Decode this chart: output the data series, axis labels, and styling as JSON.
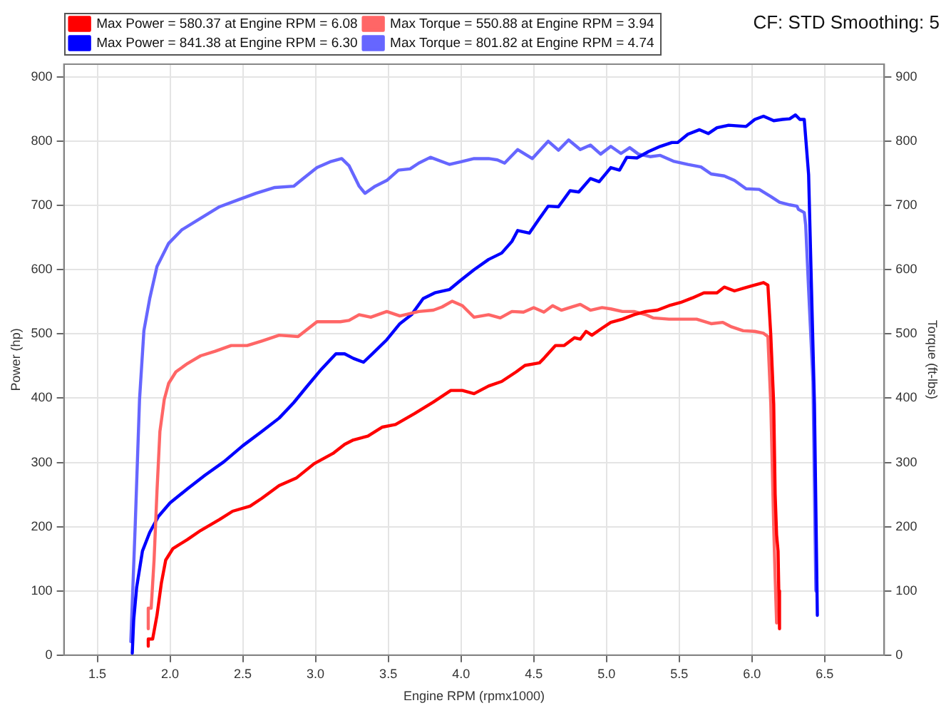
{
  "chart_data": {
    "type": "line",
    "subtitle": "CF: STD Smoothing: 5",
    "xlabel": "Engine RPM (rpmx1000)",
    "ylabel": "Power (hp)",
    "y2label": "Torque (ft-lbs)",
    "xlim": [
      1.27,
      6.91
    ],
    "xticks": [
      1.5,
      {
        "value": 2,
        "label": "2.0"
      },
      2.5,
      {
        "value": 3,
        "label": "3.0"
      },
      3.5,
      {
        "value": 4,
        "label": "4.0"
      },
      4.5,
      {
        "value": 5,
        "label": "5.0"
      },
      5.5,
      {
        "value": 6,
        "label": "6.0"
      },
      6.5
    ],
    "ylim": [
      0,
      920
    ],
    "yticks": [
      0,
      100,
      200,
      300,
      400,
      500,
      600,
      700,
      800,
      900
    ],
    "y2lim": [
      0,
      920
    ],
    "y2ticks": [
      0,
      100,
      200,
      300,
      400,
      500,
      600,
      700,
      800,
      900
    ],
    "grid": true,
    "legend": "top left",
    "marker": "none",
    "line_style": "solid",
    "series": [
      {
        "name": "Max Power = 580.37 at Engine RPM = 6.08",
        "color": "#ff0000",
        "x": [
          1.85,
          1.85,
          1.88,
          1.91,
          1.94,
          1.97,
          2.02,
          2.12,
          2.21,
          2.34,
          2.43,
          2.55,
          2.63,
          2.75,
          2.87,
          2.99,
          3.12,
          3.2,
          3.26,
          3.36,
          3.46,
          3.55,
          3.68,
          3.81,
          3.93,
          4.01,
          4.09,
          4.19,
          4.28,
          4.38,
          4.44,
          4.54,
          4.57,
          4.65,
          4.71,
          4.78,
          4.82,
          4.86,
          4.9,
          4.97,
          5.03,
          5.11,
          5.19,
          5.27,
          5.35,
          5.43,
          5.51,
          5.59,
          5.67,
          5.76,
          5.81,
          5.88,
          5.94,
          6.0,
          6.08,
          6.11,
          6.13,
          6.15,
          6.16,
          6.17,
          6.18,
          6.185,
          6.19
        ],
        "values": [
          14,
          25,
          25,
          62,
          112,
          148,
          166,
          180,
          194,
          211,
          224,
          232,
          244,
          264,
          276,
          298,
          314,
          328,
          335,
          341,
          355,
          359,
          376,
          394,
          412,
          412,
          407,
          419,
          426,
          441,
          451,
          455,
          462,
          482,
          482,
          494,
          492,
          504,
          498,
          509,
          518,
          523,
          530,
          535,
          537,
          544,
          549,
          556,
          564,
          564,
          573,
          567,
          571,
          575,
          580,
          576,
          498,
          391,
          250,
          187,
          162,
          100,
          41
        ]
      },
      {
        "name": "Max Torque = 550.88 at Engine RPM = 3.94",
        "color": "#ff6666",
        "x": [
          1.85,
          1.85,
          1.87,
          1.89,
          1.91,
          1.93,
          1.96,
          1.99,
          2.04,
          2.12,
          2.21,
          2.31,
          2.42,
          2.53,
          2.63,
          2.75,
          2.88,
          3.01,
          3.17,
          3.23,
          3.3,
          3.38,
          3.49,
          3.58,
          3.71,
          3.81,
          3.87,
          3.94,
          4.01,
          4.09,
          4.19,
          4.27,
          4.35,
          4.43,
          4.5,
          4.57,
          4.63,
          4.69,
          4.76,
          4.82,
          4.89,
          4.97,
          5.03,
          5.11,
          5.19,
          5.27,
          5.32,
          5.43,
          5.53,
          5.62,
          5.72,
          5.8,
          5.86,
          5.94,
          6.02,
          6.08,
          6.11,
          6.13,
          6.15,
          6.16,
          6.17
        ],
        "values": [
          41,
          73,
          73,
          148,
          255,
          348,
          398,
          423,
          441,
          454,
          466,
          473,
          482,
          482,
          489,
          498,
          496,
          519,
          519,
          521,
          530,
          526,
          535,
          528,
          535,
          537,
          542,
          551,
          544,
          526,
          530,
          525,
          535,
          534,
          541,
          534,
          544,
          537,
          542,
          546,
          537,
          541,
          539,
          535,
          535,
          530,
          525,
          523,
          523,
          523,
          516,
          518,
          511,
          505,
          504,
          501,
          496,
          391,
          200,
          120,
          50
        ]
      },
      {
        "name": "Max Power = 841.38 at Engine RPM = 6.30",
        "color": "#0000ff",
        "x": [
          1.74,
          1.75,
          1.77,
          1.81,
          1.86,
          1.92,
          2.0,
          2.12,
          2.24,
          2.37,
          2.5,
          2.63,
          2.75,
          2.85,
          2.94,
          3.04,
          3.14,
          3.2,
          3.26,
          3.33,
          3.39,
          3.49,
          3.58,
          3.66,
          3.74,
          3.82,
          3.92,
          4.0,
          4.09,
          4.19,
          4.28,
          4.35,
          4.39,
          4.47,
          4.54,
          4.6,
          4.67,
          4.75,
          4.81,
          4.89,
          4.95,
          5.03,
          5.09,
          5.14,
          5.21,
          5.29,
          5.37,
          5.45,
          5.49,
          5.56,
          5.64,
          5.7,
          5.76,
          5.84,
          5.96,
          6.02,
          6.08,
          6.15,
          6.21,
          6.26,
          6.3,
          6.33,
          6.36,
          6.39,
          6.41,
          6.43,
          6.45
        ],
        "values": [
          3,
          55,
          105,
          162,
          191,
          216,
          237,
          259,
          280,
          301,
          326,
          348,
          369,
          393,
          418,
          445,
          469,
          469,
          462,
          456,
          469,
          491,
          516,
          530,
          555,
          564,
          569,
          584,
          600,
          616,
          626,
          644,
          661,
          657,
          680,
          699,
          698,
          723,
          721,
          742,
          737,
          759,
          755,
          775,
          774,
          784,
          792,
          798,
          798,
          811,
          818,
          812,
          821,
          825,
          823,
          834,
          839,
          832,
          834,
          835,
          841,
          834,
          834,
          748,
          569,
          391,
          62
        ]
      },
      {
        "name": "Max Torque = 801.82 at Engine RPM = 4.74",
        "color": "#6666ff",
        "x": [
          1.73,
          1.76,
          1.79,
          1.82,
          1.86,
          1.91,
          1.99,
          2.08,
          2.21,
          2.34,
          2.47,
          2.59,
          2.72,
          2.85,
          2.91,
          3.01,
          3.1,
          3.18,
          3.23,
          3.3,
          3.34,
          3.41,
          3.49,
          3.57,
          3.65,
          3.71,
          3.79,
          3.92,
          4.0,
          4.09,
          4.19,
          4.25,
          4.3,
          4.39,
          4.49,
          4.6,
          4.67,
          4.74,
          4.82,
          4.89,
          4.96,
          5.03,
          5.1,
          5.16,
          5.22,
          5.3,
          5.37,
          5.46,
          5.56,
          5.65,
          5.72,
          5.81,
          5.88,
          5.96,
          6.05,
          6.13,
          6.19,
          6.26,
          6.31,
          6.32,
          6.36,
          6.37,
          6.39,
          6.42,
          6.44
        ],
        "values": [
          21,
          200,
          398,
          505,
          555,
          605,
          641,
          662,
          680,
          698,
          709,
          719,
          728,
          730,
          741,
          759,
          768,
          773,
          762,
          730,
          719,
          730,
          739,
          755,
          757,
          766,
          775,
          764,
          768,
          773,
          773,
          771,
          766,
          787,
          773,
          800,
          786,
          802,
          787,
          794,
          780,
          792,
          781,
          790,
          780,
          776,
          778,
          769,
          764,
          760,
          749,
          746,
          739,
          726,
          725,
          714,
          705,
          701,
          699,
          694,
          689,
          669,
          569,
          426,
          100
        ]
      }
    ]
  }
}
